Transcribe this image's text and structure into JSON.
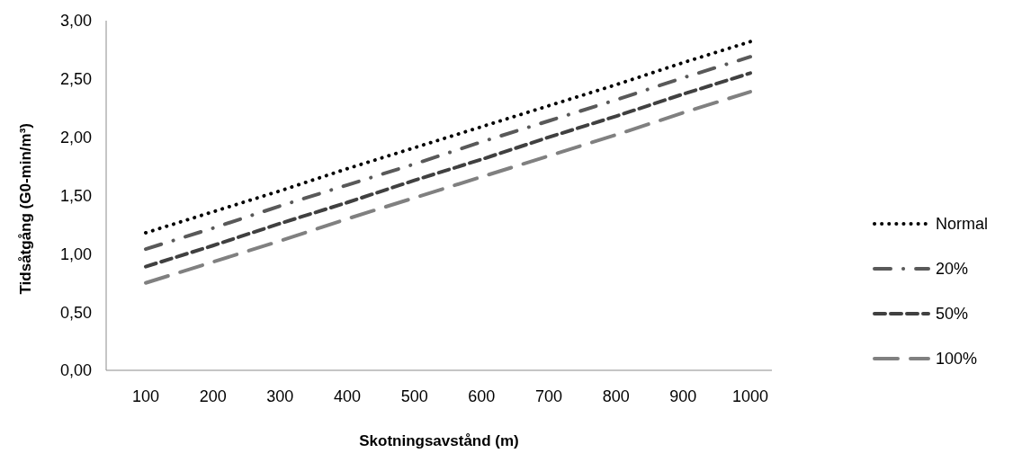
{
  "chart_data": {
    "type": "line",
    "xlabel": "Skotningsavstånd (m)",
    "ylabel": "Tidsåtgång (G0-min/m³)",
    "categories": [
      "100",
      "200",
      "300",
      "400",
      "500",
      "600",
      "700",
      "800",
      "900",
      "1000"
    ],
    "series": [
      {
        "name": "Normal",
        "color": "#000000",
        "line_style": "dotted",
        "values": [
          1.18,
          1.36,
          1.54,
          1.73,
          1.91,
          2.09,
          2.27,
          2.45,
          2.64,
          2.82
        ]
      },
      {
        "name": "20%",
        "color": "#595959",
        "line_style": "dashdot",
        "values": [
          1.04,
          1.22,
          1.41,
          1.59,
          1.77,
          1.96,
          2.14,
          2.32,
          2.51,
          2.69
        ]
      },
      {
        "name": "50%",
        "color": "#404040",
        "line_style": "dashed",
        "values": [
          0.89,
          1.07,
          1.26,
          1.44,
          1.63,
          1.81,
          2.0,
          2.18,
          2.37,
          2.55
        ]
      },
      {
        "name": "100%",
        "color": "#808080",
        "line_style": "longdash",
        "values": [
          0.75,
          0.93,
          1.11,
          1.3,
          1.48,
          1.66,
          1.84,
          2.02,
          2.21,
          2.39
        ]
      }
    ],
    "ylim": [
      0,
      3
    ],
    "yticks": [
      {
        "value": 0,
        "label": "0,00"
      },
      {
        "value": 0.5,
        "label": "0,50"
      },
      {
        "value": 1,
        "label": "1,00"
      },
      {
        "value": 1.5,
        "label": "1,50"
      },
      {
        "value": 2,
        "label": "2,00"
      },
      {
        "value": 2.5,
        "label": "2,50"
      },
      {
        "value": 3,
        "label": "3,00"
      }
    ],
    "grid": false,
    "legend": "right",
    "marker": "none"
  }
}
